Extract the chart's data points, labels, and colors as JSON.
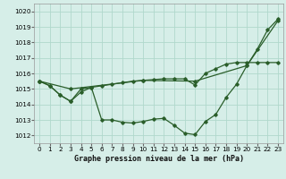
{
  "title": "Graphe pression niveau de la mer (hPa)",
  "bg_color": "#d6eee8",
  "grid_color": "#b0d8cc",
  "line_color": "#2a5e2a",
  "xlim": [
    -0.5,
    23.5
  ],
  "ylim": [
    1011.5,
    1020.5
  ],
  "yticks": [
    1012,
    1013,
    1014,
    1015,
    1016,
    1017,
    1018,
    1019,
    1020
  ],
  "xticks": [
    0,
    1,
    2,
    3,
    4,
    5,
    6,
    7,
    8,
    9,
    10,
    11,
    12,
    13,
    14,
    15,
    16,
    17,
    18,
    19,
    20,
    21,
    22,
    23
  ],
  "line1_x": [
    0,
    1,
    2,
    3,
    4,
    5,
    6,
    7,
    8,
    9,
    10,
    11,
    12,
    13,
    14,
    15,
    16,
    17,
    18,
    19,
    20,
    21,
    22,
    23
  ],
  "line1_y": [
    1015.5,
    1015.2,
    1014.6,
    1014.2,
    1014.8,
    1015.1,
    1013.0,
    1013.0,
    1012.85,
    1012.8,
    1012.9,
    1013.05,
    1013.1,
    1012.65,
    1012.15,
    1012.05,
    1012.9,
    1013.35,
    1014.45,
    1015.3,
    1016.5,
    1017.55,
    1018.8,
    1019.5
  ],
  "line2_x": [
    0,
    1,
    2,
    3,
    4,
    5,
    6,
    7,
    8,
    9,
    10,
    11,
    12,
    13,
    14,
    15,
    16,
    17,
    18,
    19,
    20,
    21,
    22,
    23
  ],
  "line2_y": [
    1015.5,
    1015.2,
    1014.6,
    1014.2,
    1015.0,
    1015.1,
    1015.2,
    1015.3,
    1015.4,
    1015.5,
    1015.55,
    1015.6,
    1015.65,
    1015.65,
    1015.65,
    1015.25,
    1016.0,
    1016.3,
    1016.6,
    1016.7,
    1016.7,
    1016.7,
    1016.7,
    1016.7
  ],
  "line3_x": [
    0,
    3,
    10,
    15,
    20,
    23
  ],
  "line3_y": [
    1015.5,
    1015.0,
    1015.55,
    1015.5,
    1016.5,
    1019.4
  ],
  "title_fontsize": 6.0,
  "tick_fontsize": 5.2,
  "marker_size": 1.8,
  "linewidth": 0.9
}
